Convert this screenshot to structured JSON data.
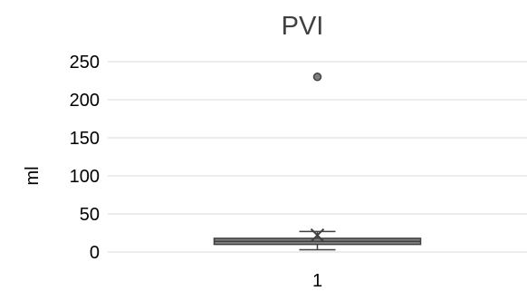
{
  "chart_data": {
    "type": "box",
    "title": "PVI",
    "xlabel": "",
    "ylabel": "ml",
    "categories": [
      "1"
    ],
    "ylim": [
      0,
      250
    ],
    "yticks": [
      0,
      50,
      100,
      150,
      200,
      250
    ],
    "grid": true,
    "legend": "none",
    "series": [
      {
        "category": "1",
        "min": 3,
        "q1": 10,
        "median": 14,
        "q3": 18,
        "max": 27,
        "mean": 22,
        "outliers": [
          230
        ]
      }
    ],
    "colors": {
      "box": "#7f7f7f",
      "line": "#404040",
      "grid": "#d9d9d9"
    }
  }
}
